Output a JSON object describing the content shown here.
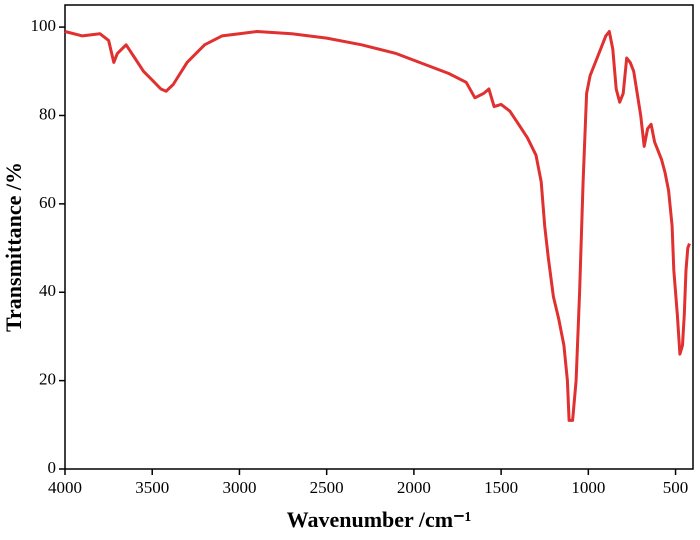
{
  "chart_data": {
    "type": "line",
    "x_label": "Wavenumber /cm⁻¹",
    "y_label": "Transmittance /%",
    "xlim": [
      4000,
      400
    ],
    "ylim": [
      0,
      105
    ],
    "xticks": [
      4000,
      3500,
      3000,
      2500,
      2000,
      1500,
      1000,
      500
    ],
    "yticks": [
      0,
      20,
      40,
      60,
      80,
      100
    ],
    "x": [
      4000,
      3900,
      3800,
      3750,
      3720,
      3700,
      3650,
      3600,
      3550,
      3500,
      3450,
      3420,
      3380,
      3300,
      3200,
      3100,
      3000,
      2900,
      2700,
      2500,
      2300,
      2100,
      1900,
      1800,
      1700,
      1650,
      1600,
      1570,
      1540,
      1500,
      1450,
      1400,
      1350,
      1300,
      1270,
      1250,
      1230,
      1200,
      1170,
      1140,
      1120,
      1110,
      1090,
      1070,
      1050,
      1030,
      1010,
      990,
      950,
      900,
      880,
      860,
      840,
      820,
      800,
      780,
      760,
      740,
      720,
      700,
      680,
      660,
      640,
      620,
      600,
      580,
      560,
      540,
      520,
      510,
      490,
      475,
      460,
      450,
      440,
      430,
      420
    ],
    "series": [
      {
        "color": "#e03030",
        "values": [
          99,
          98,
          98.5,
          97,
          92,
          94,
          96,
          93,
          90,
          88,
          86,
          85.5,
          87,
          92,
          96,
          98,
          98.5,
          99,
          98.5,
          97.5,
          96,
          94,
          91,
          89.5,
          87.5,
          84,
          85,
          86,
          82,
          82.5,
          81,
          78,
          75,
          71,
          65,
          55,
          48,
          39,
          34,
          28,
          20,
          11,
          11,
          20,
          40,
          65,
          85,
          89,
          93,
          98,
          99,
          95,
          86,
          83,
          85,
          93,
          92,
          90,
          85,
          80,
          73,
          77,
          78,
          74,
          72,
          70,
          67,
          63,
          55,
          45,
          35,
          26,
          28,
          35,
          45,
          50,
          51
        ]
      }
    ]
  }
}
